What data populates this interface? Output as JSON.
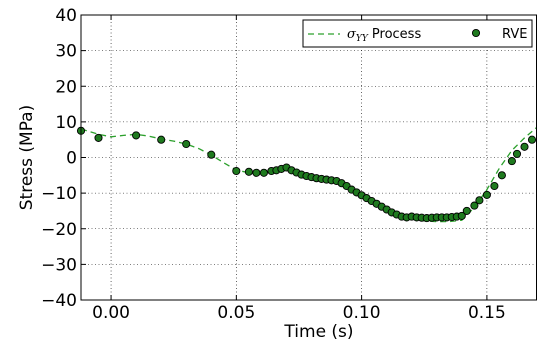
{
  "chart_data": {
    "type": "line",
    "xlabel": "Time (s)",
    "ylabel": "Stress (MPa)",
    "xlim": [
      -0.012,
      0.17
    ],
    "ylim": [
      -40,
      40
    ],
    "xticks": [
      0.0,
      0.05,
      0.1,
      0.15
    ],
    "xtick_labels": [
      "0.00",
      "0.05",
      "0.10",
      "0.15"
    ],
    "yticks": [
      -40,
      -30,
      -20,
      -10,
      0,
      10,
      20,
      30,
      40
    ],
    "ytick_labels": [
      "−40",
      "−30",
      "−20",
      "−10",
      "0",
      "10",
      "20",
      "30",
      "40"
    ],
    "grid": true,
    "legend_position": "top-right",
    "colors": {
      "line": "#2ca02c",
      "marker_fill": "#1f7a1f",
      "marker_edge": "#000000"
    },
    "series": [
      {
        "name": "σYY Process",
        "style": "dashed-line",
        "x": [
          -0.012,
          -0.005,
          0.0,
          0.005,
          0.01,
          0.015,
          0.02,
          0.025,
          0.03,
          0.035,
          0.04,
          0.045,
          0.05,
          0.055,
          0.06,
          0.065,
          0.07,
          0.075,
          0.08,
          0.085,
          0.09,
          0.095,
          0.1,
          0.105,
          0.11,
          0.115,
          0.12,
          0.125,
          0.13,
          0.135,
          0.14,
          0.145,
          0.15,
          0.155,
          0.16,
          0.165,
          0.17
        ],
        "y": [
          8.0,
          6.5,
          5.8,
          6.2,
          6.5,
          6.0,
          5.2,
          4.6,
          3.8,
          2.5,
          0.7,
          -1.5,
          -3.5,
          -4.3,
          -4.4,
          -3.6,
          -3.0,
          -4.2,
          -5.6,
          -6.0,
          -6.5,
          -8.0,
          -10.0,
          -12.0,
          -14.0,
          -16.0,
          -17.3,
          -17.8,
          -18.0,
          -18.0,
          -17.6,
          -14.0,
          -9.0,
          -3.0,
          2.0,
          5.5,
          8.5
        ]
      },
      {
        "name": "RVE",
        "style": "markers",
        "x": [
          -0.012,
          -0.005,
          0.01,
          0.02,
          0.03,
          0.04,
          0.05,
          0.055,
          0.058,
          0.061,
          0.064,
          0.066,
          0.068,
          0.07,
          0.072,
          0.074,
          0.076,
          0.078,
          0.08,
          0.082,
          0.084,
          0.086,
          0.088,
          0.09,
          0.092,
          0.094,
          0.096,
          0.098,
          0.1,
          0.102,
          0.104,
          0.106,
          0.108,
          0.11,
          0.112,
          0.114,
          0.116,
          0.118,
          0.12,
          0.122,
          0.124,
          0.126,
          0.128,
          0.13,
          0.132,
          0.134,
          0.136,
          0.138,
          0.14,
          0.142,
          0.145,
          0.147,
          0.15,
          0.153,
          0.156,
          0.16,
          0.162,
          0.165,
          0.168
        ],
        "y": [
          7.5,
          5.5,
          6.2,
          5.0,
          3.8,
          0.8,
          -3.8,
          -4.0,
          -4.3,
          -4.3,
          -3.8,
          -3.6,
          -3.2,
          -2.8,
          -3.6,
          -4.2,
          -4.8,
          -5.2,
          -5.5,
          -5.8,
          -6.0,
          -6.2,
          -6.4,
          -6.6,
          -7.2,
          -8.0,
          -9.0,
          -9.8,
          -10.6,
          -11.4,
          -12.2,
          -13.0,
          -13.8,
          -14.6,
          -15.4,
          -16.0,
          -16.6,
          -16.8,
          -16.6,
          -16.8,
          -16.9,
          -17.0,
          -16.9,
          -16.8,
          -16.8,
          -16.8,
          -16.7,
          -16.6,
          -16.4,
          -15.0,
          -13.5,
          -12.0,
          -10.5,
          -8.0,
          -5.0,
          -1.0,
          1.0,
          3.0,
          5.0
        ]
      }
    ]
  }
}
